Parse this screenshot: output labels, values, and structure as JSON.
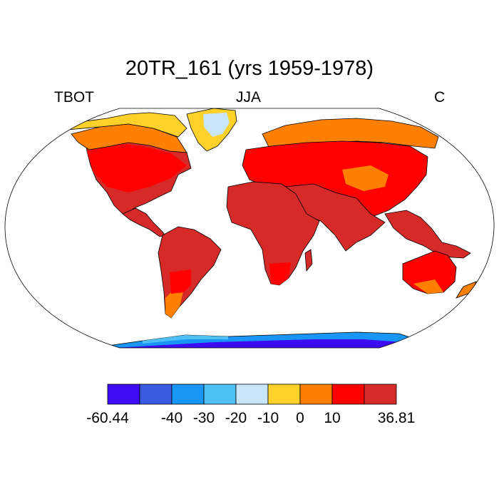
{
  "title": "20TR_161 (yrs 1959-1978)",
  "left_label": "TBOT",
  "center_label": "JJA",
  "right_label": "C",
  "map": {
    "projection": "robinson",
    "variable": "TBOT",
    "season": "JJA",
    "units": "C"
  },
  "colorbar": {
    "colors": [
      "#3d0cf5",
      "#3a5be0",
      "#1996f5",
      "#4fc0f5",
      "#c8e6f7",
      "#ffd12a",
      "#ff8000",
      "#ff0000",
      "#d62a28"
    ],
    "tick_labels": [
      "-60.44",
      "-40",
      "-30",
      "-20",
      "-10",
      "0",
      "10",
      "36.81"
    ],
    "tick_values": [
      -60.44,
      -40,
      -30,
      -20,
      -10,
      0,
      10,
      36.81
    ]
  },
  "palette": {
    "ocean": "#ffffff",
    "outline": "#000000"
  }
}
